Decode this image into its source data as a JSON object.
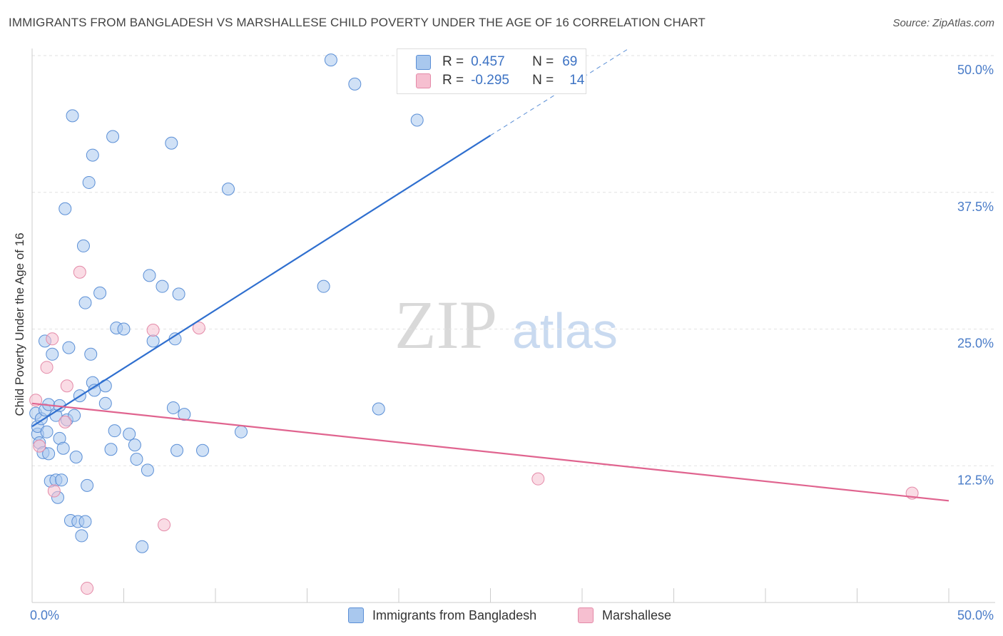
{
  "title": "IMMIGRANTS FROM BANGLADESH VS MARSHALLESE CHILD POVERTY UNDER THE AGE OF 16 CORRELATION CHART",
  "source": "Source: ZipAtlas.com",
  "watermark": {
    "zip": "ZIP",
    "atlas": "atlas"
  },
  "legend": {
    "rows": [
      {
        "r_label": "R =",
        "r_value": "0.457",
        "n_label": "N =",
        "n_value": "69"
      },
      {
        "r_label": "R =",
        "r_value": "-0.295",
        "n_label": "N =",
        "n_value": "14"
      }
    ]
  },
  "bottom_legend": {
    "series1": "Immigrants from Bangladesh",
    "series2": "Marshallese"
  },
  "colors": {
    "blue_fill": "#a9c8ee",
    "blue_stroke": "#5b8fd6",
    "blue_line": "#2f6fcf",
    "pink_fill": "#f6bfd0",
    "pink_stroke": "#e48aa8",
    "pink_line": "#e0648f",
    "grid": "#e2e2e2",
    "tick_text": "#4a7cc8"
  },
  "chart_data": {
    "type": "scatter",
    "title": "IMMIGRANTS FROM BANGLADESH VS MARSHALLESE CHILD POVERTY UNDER THE AGE OF 16 CORRELATION CHART",
    "xlabel": "",
    "ylabel": "Child Poverty Under the Age of 16",
    "xlim": [
      0,
      50
    ],
    "ylim": [
      0,
      50
    ],
    "x_tick_labels": [
      "0.0%",
      "50.0%"
    ],
    "y_ticks": [
      {
        "value": 12.5,
        "label": "12.5%"
      },
      {
        "value": 25.0,
        "label": "25.0%"
      },
      {
        "value": 37.5,
        "label": "37.5%"
      },
      {
        "value": 50.0,
        "label": "50.0%"
      }
    ],
    "series": [
      {
        "name": "Immigrants from Bangladesh",
        "R": 0.457,
        "N": 69,
        "points": [
          [
            0.2,
            17.3
          ],
          [
            0.3,
            15.4
          ],
          [
            0.3,
            16.1
          ],
          [
            0.4,
            14.6
          ],
          [
            0.5,
            16.8
          ],
          [
            0.6,
            13.7
          ],
          [
            0.7,
            17.6
          ],
          [
            0.7,
            23.9
          ],
          [
            0.8,
            15.6
          ],
          [
            0.9,
            13.6
          ],
          [
            0.9,
            18.1
          ],
          [
            1.0,
            11.1
          ],
          [
            1.1,
            22.7
          ],
          [
            1.3,
            11.2
          ],
          [
            1.3,
            17.1
          ],
          [
            1.4,
            9.6
          ],
          [
            1.5,
            15.0
          ],
          [
            1.6,
            11.2
          ],
          [
            1.7,
            14.1
          ],
          [
            1.8,
            36.0
          ],
          [
            1.9,
            16.7
          ],
          [
            2.0,
            23.3
          ],
          [
            2.1,
            7.5
          ],
          [
            2.2,
            44.5
          ],
          [
            2.3,
            17.1
          ],
          [
            2.4,
            13.3
          ],
          [
            2.5,
            7.4
          ],
          [
            2.6,
            18.9
          ],
          [
            2.7,
            6.1
          ],
          [
            2.8,
            32.6
          ],
          [
            2.9,
            7.4
          ],
          [
            2.9,
            27.4
          ],
          [
            3.0,
            10.7
          ],
          [
            3.1,
            38.4
          ],
          [
            3.2,
            22.7
          ],
          [
            3.3,
            40.9
          ],
          [
            3.3,
            20.1
          ],
          [
            3.4,
            19.4
          ],
          [
            3.7,
            28.3
          ],
          [
            4.0,
            18.2
          ],
          [
            4.0,
            19.8
          ],
          [
            4.3,
            14.0
          ],
          [
            4.4,
            42.6
          ],
          [
            4.5,
            15.7
          ],
          [
            4.6,
            25.1
          ],
          [
            5.0,
            25.0
          ],
          [
            5.3,
            15.4
          ],
          [
            5.6,
            14.4
          ],
          [
            5.7,
            13.1
          ],
          [
            6.0,
            5.1
          ],
          [
            6.3,
            12.1
          ],
          [
            6.4,
            29.9
          ],
          [
            6.6,
            23.9
          ],
          [
            7.1,
            28.9
          ],
          [
            7.6,
            42.0
          ],
          [
            7.7,
            17.8
          ],
          [
            7.8,
            24.1
          ],
          [
            7.9,
            13.9
          ],
          [
            8.0,
            28.2
          ],
          [
            8.3,
            17.2
          ],
          [
            9.3,
            13.9
          ],
          [
            10.7,
            37.8
          ],
          [
            11.4,
            15.6
          ],
          [
            15.9,
            28.9
          ],
          [
            16.3,
            49.6
          ],
          [
            17.6,
            47.4
          ],
          [
            18.9,
            17.7
          ],
          [
            21.0,
            44.1
          ],
          [
            1.5,
            18.0
          ]
        ],
        "trend_start": [
          0,
          16.1
        ],
        "trend_solid_end": [
          25.0,
          42.7
        ],
        "trend_dashed_end": [
          32.5,
          50.6
        ]
      },
      {
        "name": "Marshallese",
        "R": -0.295,
        "N": 14,
        "points": [
          [
            0.2,
            18.5
          ],
          [
            0.4,
            14.3
          ],
          [
            0.8,
            21.5
          ],
          [
            1.1,
            24.1
          ],
          [
            1.2,
            10.2
          ],
          [
            1.8,
            16.5
          ],
          [
            1.9,
            19.8
          ],
          [
            2.6,
            30.2
          ],
          [
            3.0,
            1.3
          ],
          [
            6.6,
            24.9
          ],
          [
            7.2,
            7.1
          ],
          [
            9.1,
            25.1
          ],
          [
            27.6,
            11.3
          ],
          [
            48.0,
            10.0
          ]
        ],
        "trend_start": [
          0,
          18.2
        ],
        "trend_end": [
          50,
          9.3
        ]
      }
    ]
  }
}
